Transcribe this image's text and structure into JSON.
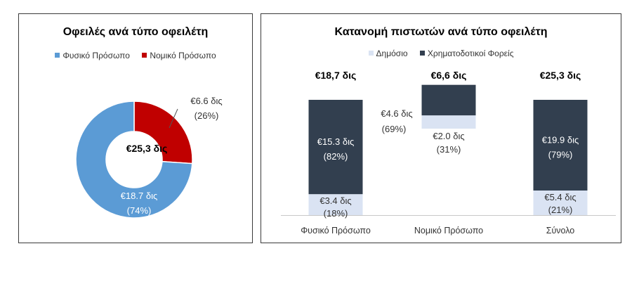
{
  "left": {
    "title": "Οφειλές ανά τύπο οφειλέτη",
    "legend": [
      {
        "label": "Φυσικό Πρόσωπο",
        "color": "#5b9bd5"
      },
      {
        "label": "Νομικό Πρόσωπο",
        "color": "#c00000"
      }
    ],
    "center_label": "€25,3 δις"
  },
  "right": {
    "title": "Κατανομή πιστωτών ανά τύπο οφειλέτη",
    "legend": [
      {
        "label": "Δημόσιο",
        "color": "#dae3f3"
      },
      {
        "label": "Χρηματοδοτικοί Φορείς",
        "color": "#323f4f"
      }
    ]
  },
  "chart_data": [
    {
      "type": "pie",
      "title": "Οφειλές ανά τύπο οφειλέτη",
      "legend_position": "top",
      "slices": [
        {
          "name": "Φυσικό Πρόσωπο",
          "value": 18.7,
          "label": "€18.7 δις",
          "pct_label": "(74%)",
          "color": "#5b9bd5"
        },
        {
          "name": "Νομικό Πρόσωπο",
          "value": 6.6,
          "label": "€6.6 δις",
          "pct_label": "(26%)",
          "color": "#c00000"
        }
      ],
      "center_label": "€25,3 δις"
    },
    {
      "type": "bar",
      "title": "Κατανομή πιστωτών ανά τύπο οφειλέτη",
      "legend_position": "top",
      "categories": [
        "Φυσικό Πρόσωπο",
        "Νομικό Πρόσωπο",
        "Σύνολο"
      ],
      "totals": [
        "€18,7 δις",
        "€6,6 δις",
        "€25,3 δις"
      ],
      "series": [
        {
          "name": "Δημόσιο",
          "color": "#dae3f3",
          "values": [
            3.4,
            2.0,
            5.4
          ],
          "labels": [
            "€3.4 δις",
            "€2.0 δις",
            "€5.4 δις"
          ],
          "pct_labels": [
            "(18%)",
            "(31%)",
            "(21%)"
          ]
        },
        {
          "name": "Χρηματοδοτικοί Φορείς",
          "color": "#323f4f",
          "values": [
            15.3,
            4.6,
            19.9
          ],
          "labels": [
            "€15.3 δις",
            "€4.6 δις",
            "€19.9 δις"
          ],
          "pct_labels": [
            "(82%)",
            "(69%)",
            "(79%)"
          ]
        }
      ],
      "normalized": true,
      "grid": false
    }
  ]
}
